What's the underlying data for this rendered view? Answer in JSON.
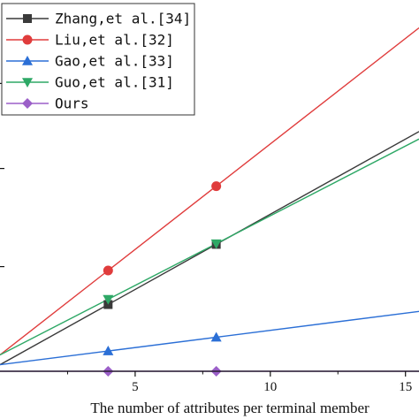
{
  "chart_data": {
    "type": "line",
    "title": "",
    "xlabel": "The number of attributes per terminal member",
    "ylabel": "",
    "xlim": [
      0,
      15.5
    ],
    "ylim": [
      0,
      1
    ],
    "xticks": [
      5,
      10,
      15
    ],
    "yticks_unlabeled": [
      0.32,
      0.62,
      0.88
    ],
    "grid": false,
    "legend_position": "top-left",
    "series": [
      {
        "name": "Zhang,et al.[34]",
        "color": "#3a3a3a",
        "marker": "square",
        "x": [
          0,
          4,
          8,
          15.5
        ],
        "y": [
          0.02,
          0.204,
          0.388,
          0.733
        ],
        "marker_x": [
          4,
          8
        ]
      },
      {
        "name": "Liu,et al.[32]",
        "color": "#e03c3c",
        "marker": "circle",
        "x": [
          0,
          4,
          8,
          15.5
        ],
        "y": [
          0.05,
          0.308,
          0.566,
          1.05
        ],
        "marker_x": [
          4,
          8
        ]
      },
      {
        "name": "Gao,et al.[33]",
        "color": "#2b6fd6",
        "marker": "triangle-up",
        "x": [
          0,
          4,
          8,
          15.5
        ],
        "y": [
          0.02,
          0.062,
          0.104,
          0.183
        ],
        "marker_x": [
          4,
          8
        ]
      },
      {
        "name": "Guo,et al.[31]",
        "color": "#2ea866",
        "marker": "triangle-down",
        "x": [
          0,
          4,
          8,
          15.5
        ],
        "y": [
          0.05,
          0.22,
          0.39,
          0.71
        ],
        "marker_x": [
          4,
          8
        ]
      },
      {
        "name": "Ours",
        "color": "#9b5fc8",
        "marker": "diamond",
        "x": [
          0,
          4,
          8,
          15.5
        ],
        "y": [
          0.0,
          0.0,
          0.0,
          0.0
        ],
        "marker_x": [
          4,
          8
        ]
      }
    ]
  }
}
